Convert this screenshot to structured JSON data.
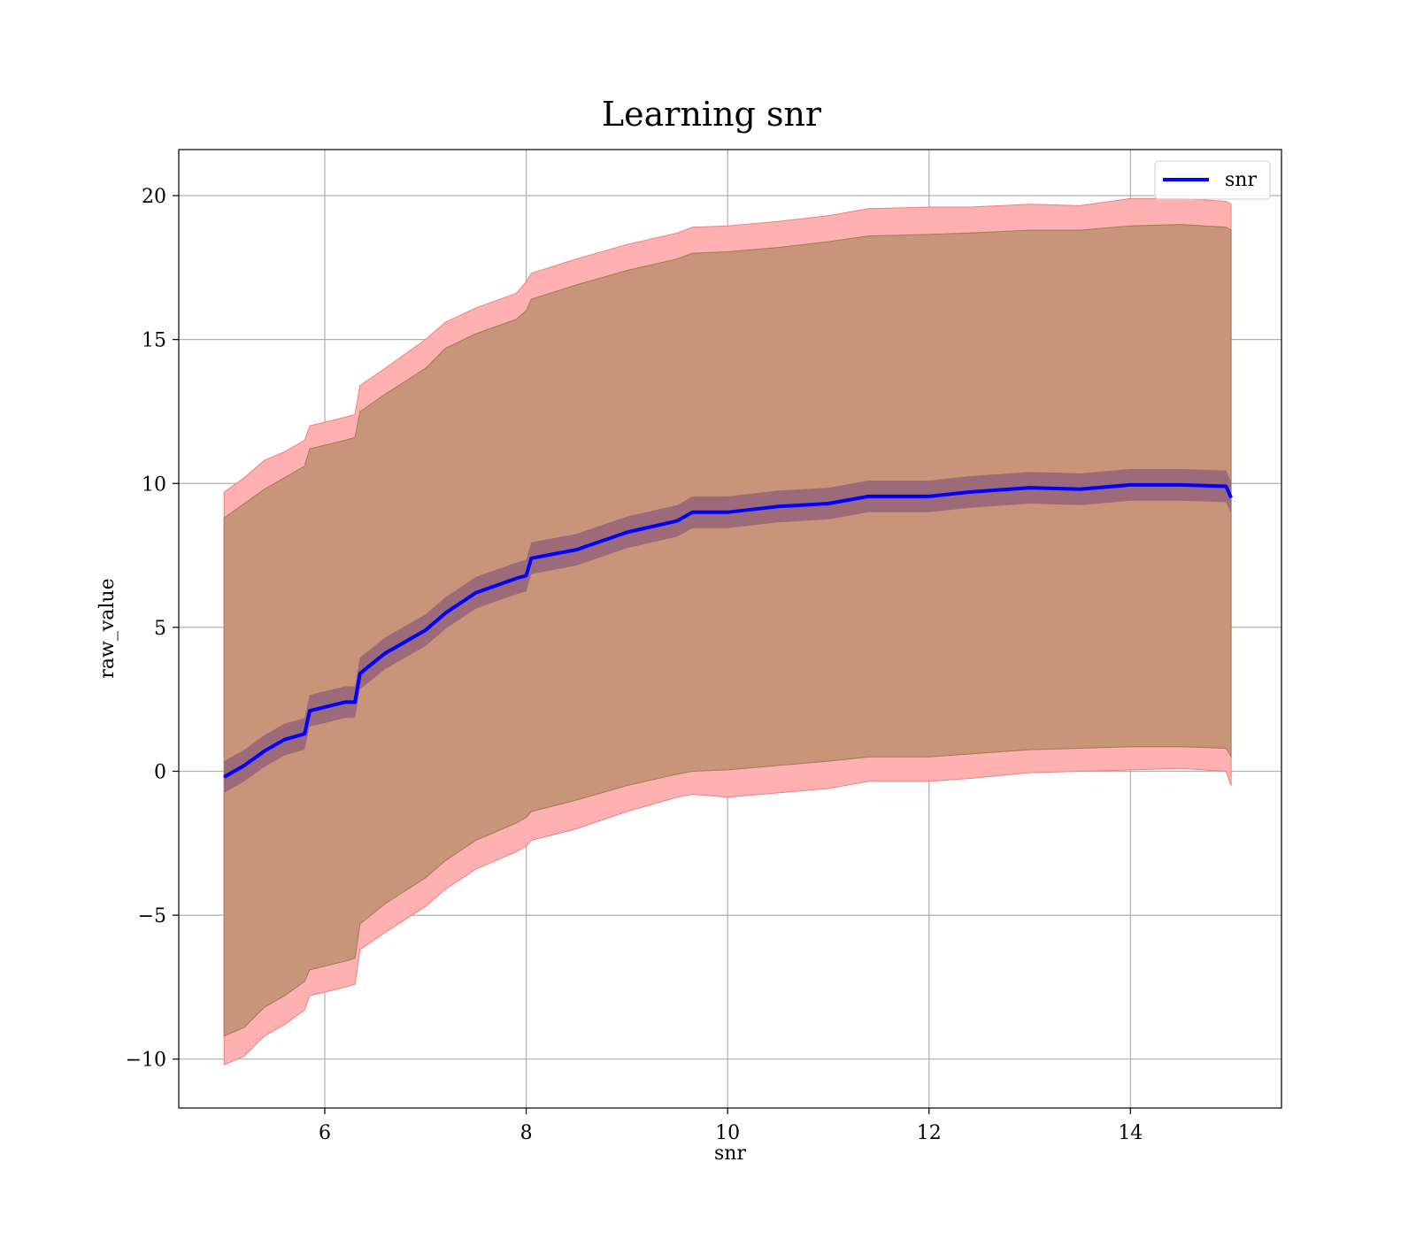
{
  "chart_data": {
    "type": "line",
    "title": "Learning snr",
    "xlabel": "snr",
    "ylabel": "raw_value",
    "xlim": [
      4.55,
      15.5
    ],
    "ylim": [
      -11.7,
      21.6
    ],
    "xticks": [
      6,
      8,
      10,
      12,
      14
    ],
    "yticks": [
      -10,
      -5,
      0,
      5,
      10,
      15,
      20
    ],
    "ytick_labels": [
      "−10",
      "−5",
      "0",
      "5",
      "10",
      "15",
      "20"
    ],
    "grid": true,
    "legend": {
      "position": "top-right",
      "entries": [
        "snr"
      ]
    },
    "colors": {
      "line": "#0000ff",
      "outer_band": "#ffb0b0",
      "inner_band": "#c8957a",
      "mean_band": "#9c6a78",
      "grid": "#b0b0b0"
    },
    "series": [
      {
        "name": "snr",
        "x": [
          5.0,
          5.2,
          5.4,
          5.6,
          5.8,
          5.85,
          6.2,
          6.3,
          6.35,
          6.6,
          7.0,
          7.2,
          7.5,
          7.9,
          8.0,
          8.05,
          8.5,
          9.0,
          9.5,
          9.65,
          10.0,
          10.5,
          11.0,
          11.4,
          12.0,
          12.4,
          13.0,
          13.5,
          14.0,
          14.5,
          14.95,
          15.0
        ],
        "y": [
          -0.2,
          0.2,
          0.7,
          1.1,
          1.3,
          2.1,
          2.4,
          2.4,
          3.4,
          4.1,
          4.9,
          5.5,
          6.2,
          6.7,
          6.8,
          7.4,
          7.7,
          8.3,
          8.7,
          9.0,
          9.0,
          9.2,
          9.3,
          9.55,
          9.55,
          9.7,
          9.85,
          9.8,
          9.95,
          9.95,
          9.9,
          9.5
        ],
        "outer_upper": [
          9.7,
          10.2,
          10.8,
          11.1,
          11.5,
          12.0,
          12.3,
          12.4,
          13.4,
          14.0,
          15.0,
          15.6,
          16.1,
          16.6,
          17.0,
          17.3,
          17.8,
          18.3,
          18.7,
          18.9,
          18.95,
          19.1,
          19.3,
          19.55,
          19.6,
          19.6,
          19.7,
          19.65,
          19.9,
          19.9,
          19.8,
          19.7
        ],
        "outer_lower": [
          -10.2,
          -9.9,
          -9.2,
          -8.8,
          -8.3,
          -7.8,
          -7.5,
          -7.4,
          -6.2,
          -5.6,
          -4.7,
          -4.1,
          -3.4,
          -2.8,
          -2.6,
          -2.4,
          -2.0,
          -1.4,
          -0.9,
          -0.8,
          -0.9,
          -0.75,
          -0.6,
          -0.35,
          -0.35,
          -0.25,
          -0.05,
          0.0,
          0.05,
          0.1,
          0.0,
          -0.5
        ],
        "inner_upper": [
          8.8,
          9.3,
          9.8,
          10.2,
          10.6,
          11.2,
          11.5,
          11.6,
          12.5,
          13.1,
          14.0,
          14.7,
          15.2,
          15.7,
          16.0,
          16.4,
          16.9,
          17.4,
          17.8,
          18.0,
          18.05,
          18.2,
          18.4,
          18.6,
          18.65,
          18.7,
          18.8,
          18.8,
          18.95,
          19.0,
          18.9,
          18.8
        ],
        "inner_lower": [
          -9.2,
          -8.9,
          -8.2,
          -7.8,
          -7.3,
          -6.9,
          -6.6,
          -6.5,
          -5.3,
          -4.6,
          -3.7,
          -3.1,
          -2.4,
          -1.8,
          -1.6,
          -1.4,
          -1.0,
          -0.5,
          -0.1,
          0.0,
          0.05,
          0.2,
          0.35,
          0.5,
          0.5,
          0.6,
          0.75,
          0.8,
          0.85,
          0.85,
          0.8,
          0.5
        ]
      }
    ]
  }
}
